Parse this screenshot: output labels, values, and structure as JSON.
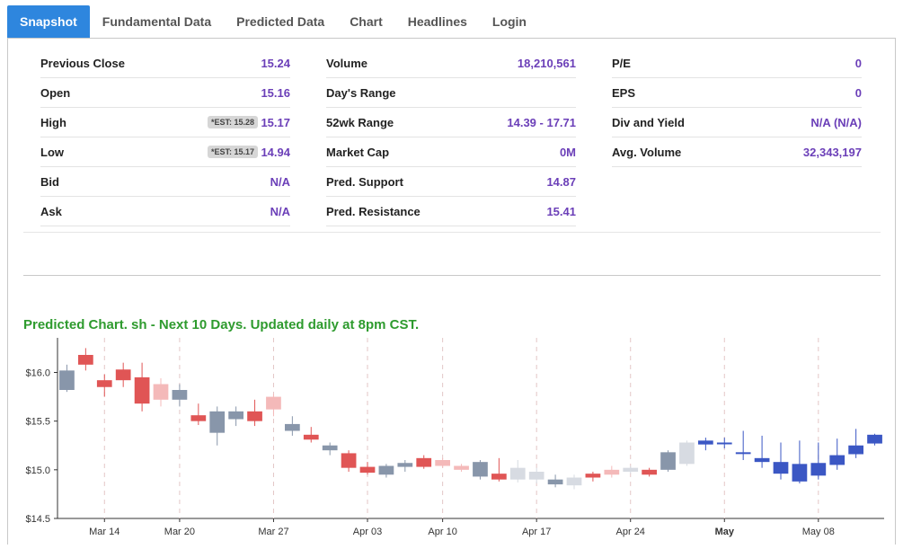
{
  "tabs": [
    {
      "label": "Snapshot",
      "active": true
    },
    {
      "label": "Fundamental Data"
    },
    {
      "label": "Predicted Data"
    },
    {
      "label": "Chart"
    },
    {
      "label": "Headlines"
    },
    {
      "label": "Login"
    }
  ],
  "col1": [
    {
      "label": "Previous Close",
      "value": "15.24"
    },
    {
      "label": "Open",
      "value": "15.16"
    },
    {
      "label": "High",
      "value": "15.17",
      "est": "*EST: 15.28"
    },
    {
      "label": "Low",
      "value": "14.94",
      "est": "*EST: 15.17"
    },
    {
      "label": "Bid",
      "value": "N/A"
    },
    {
      "label": "Ask",
      "value": "N/A"
    }
  ],
  "col2": [
    {
      "label": "Volume",
      "value": "18,210,561"
    },
    {
      "label": "Day's Range",
      "value": ""
    },
    {
      "label": "52wk Range",
      "value": "14.39 - 17.71"
    },
    {
      "label": "Market Cap",
      "value": "0M"
    },
    {
      "label": "Pred. Support",
      "value": "14.87"
    },
    {
      "label": "Pred. Resistance",
      "value": "15.41"
    }
  ],
  "col3": [
    {
      "label": "P/E",
      "value": "0"
    },
    {
      "label": "EPS",
      "value": "0"
    },
    {
      "label": "Div and Yield",
      "value": "N/A (N/A)"
    },
    {
      "label": "Avg. Volume",
      "value": "32,343,197"
    }
  ],
  "chart": {
    "title": "Predicted Chart. sh - Next 10 Days. Updated daily at 8pm CST."
  },
  "chart_data": {
    "type": "candlestick",
    "ylim": [
      14.5,
      16.3
    ],
    "yticks": [
      {
        "v": 16.0,
        "label": "$16.0"
      },
      {
        "v": 15.5,
        "label": "$15.5"
      },
      {
        "v": 15.0,
        "label": "$15.0"
      },
      {
        "v": 14.5,
        "label": "$14.5"
      }
    ],
    "xticks": [
      {
        "i": 2,
        "label": "Mar 14",
        "bold": false
      },
      {
        "i": 6,
        "label": "Mar 20",
        "bold": false
      },
      {
        "i": 11,
        "label": "Mar 27",
        "bold": false
      },
      {
        "i": 16,
        "label": "Apr 03",
        "bold": false
      },
      {
        "i": 20,
        "label": "Apr 10",
        "bold": false
      },
      {
        "i": 25,
        "label": "Apr 17",
        "bold": false
      },
      {
        "i": 30,
        "label": "Apr 24",
        "bold": false
      },
      {
        "i": 35,
        "label": "May",
        "bold": true
      },
      {
        "i": 40,
        "label": "May 08",
        "bold": false
      }
    ],
    "colors": {
      "up": "#8896aa",
      "down": "#e05555",
      "up_light": "#d7dbe2",
      "down_light": "#f4b9b9",
      "pred": "#3b57c4"
    },
    "candles": [
      {
        "o": 15.82,
        "c": 16.02,
        "h": 16.08,
        "l": 15.8,
        "k": "up"
      },
      {
        "o": 16.08,
        "c": 16.18,
        "h": 16.25,
        "l": 16.02,
        "k": "down"
      },
      {
        "o": 15.92,
        "c": 15.85,
        "h": 15.98,
        "l": 15.75,
        "k": "down"
      },
      {
        "o": 15.92,
        "c": 16.03,
        "h": 16.1,
        "l": 15.85,
        "k": "down"
      },
      {
        "o": 15.68,
        "c": 15.95,
        "h": 16.1,
        "l": 15.6,
        "k": "down"
      },
      {
        "o": 15.72,
        "c": 15.88,
        "h": 15.94,
        "l": 15.65,
        "k": "down_light"
      },
      {
        "o": 15.72,
        "c": 15.82,
        "h": 15.88,
        "l": 15.65,
        "k": "up"
      },
      {
        "o": 15.5,
        "c": 15.56,
        "h": 15.68,
        "l": 15.46,
        "k": "down"
      },
      {
        "o": 15.38,
        "c": 15.6,
        "h": 15.65,
        "l": 15.25,
        "k": "up"
      },
      {
        "o": 15.52,
        "c": 15.6,
        "h": 15.65,
        "l": 15.45,
        "k": "up"
      },
      {
        "o": 15.5,
        "c": 15.6,
        "h": 15.72,
        "l": 15.45,
        "k": "down"
      },
      {
        "o": 15.62,
        "c": 15.75,
        "h": 15.78,
        "l": 15.55,
        "k": "down_light"
      },
      {
        "o": 15.4,
        "c": 15.47,
        "h": 15.55,
        "l": 15.35,
        "k": "up"
      },
      {
        "o": 15.31,
        "c": 15.36,
        "h": 15.44,
        "l": 15.28,
        "k": "down"
      },
      {
        "o": 15.2,
        "c": 15.25,
        "h": 15.28,
        "l": 15.15,
        "k": "up"
      },
      {
        "o": 15.02,
        "c": 15.17,
        "h": 15.2,
        "l": 14.98,
        "k": "down"
      },
      {
        "o": 14.97,
        "c": 15.03,
        "h": 15.08,
        "l": 14.95,
        "k": "down"
      },
      {
        "o": 14.95,
        "c": 15.04,
        "h": 15.06,
        "l": 14.92,
        "k": "up"
      },
      {
        "o": 15.03,
        "c": 15.07,
        "h": 15.1,
        "l": 14.98,
        "k": "up"
      },
      {
        "o": 15.03,
        "c": 15.12,
        "h": 15.15,
        "l": 15.01,
        "k": "down"
      },
      {
        "o": 15.04,
        "c": 15.1,
        "h": 15.12,
        "l": 15.02,
        "k": "down_light"
      },
      {
        "o": 15.0,
        "c": 15.04,
        "h": 15.06,
        "l": 14.98,
        "k": "down_light"
      },
      {
        "o": 14.93,
        "c": 15.08,
        "h": 15.1,
        "l": 14.9,
        "k": "up"
      },
      {
        "o": 14.9,
        "c": 14.96,
        "h": 15.12,
        "l": 14.88,
        "k": "down"
      },
      {
        "o": 14.9,
        "c": 15.02,
        "h": 15.1,
        "l": 14.87,
        "k": "up_light"
      },
      {
        "o": 14.9,
        "c": 14.98,
        "h": 15.02,
        "l": 14.86,
        "k": "up_light"
      },
      {
        "o": 14.85,
        "c": 14.9,
        "h": 14.95,
        "l": 14.82,
        "k": "up"
      },
      {
        "o": 14.84,
        "c": 14.92,
        "h": 14.95,
        "l": 14.8,
        "k": "up_light"
      },
      {
        "o": 14.92,
        "c": 14.96,
        "h": 14.98,
        "l": 14.88,
        "k": "down"
      },
      {
        "o": 14.95,
        "c": 15.0,
        "h": 15.04,
        "l": 14.92,
        "k": "down_light"
      },
      {
        "o": 14.98,
        "c": 15.02,
        "h": 15.04,
        "l": 14.96,
        "k": "up_light"
      },
      {
        "o": 14.95,
        "c": 15.0,
        "h": 15.02,
        "l": 14.93,
        "k": "down"
      },
      {
        "o": 15.0,
        "c": 15.18,
        "h": 15.2,
        "l": 14.98,
        "k": "up"
      },
      {
        "o": 15.06,
        "c": 15.28,
        "h": 15.3,
        "l": 15.04,
        "k": "up_light"
      },
      {
        "o": 15.26,
        "c": 15.3,
        "h": 15.33,
        "l": 15.2,
        "k": "pred"
      },
      {
        "o": 15.27,
        "c": 15.28,
        "h": 15.33,
        "l": 15.22,
        "k": "pred"
      },
      {
        "o": 15.17,
        "c": 15.18,
        "h": 15.4,
        "l": 15.1,
        "k": "pred"
      },
      {
        "o": 15.08,
        "c": 15.12,
        "h": 15.35,
        "l": 15.02,
        "k": "pred"
      },
      {
        "o": 14.96,
        "c": 15.08,
        "h": 15.28,
        "l": 14.9,
        "k": "pred"
      },
      {
        "o": 14.88,
        "c": 15.06,
        "h": 15.3,
        "l": 14.86,
        "k": "pred"
      },
      {
        "o": 14.94,
        "c": 15.07,
        "h": 15.28,
        "l": 14.9,
        "k": "pred"
      },
      {
        "o": 15.05,
        "c": 15.15,
        "h": 15.32,
        "l": 15.0,
        "k": "pred"
      },
      {
        "o": 15.16,
        "c": 15.25,
        "h": 15.42,
        "l": 15.12,
        "k": "pred"
      },
      {
        "o": 15.27,
        "c": 15.36,
        "h": 15.37,
        "l": 15.25,
        "k": "pred"
      }
    ]
  }
}
